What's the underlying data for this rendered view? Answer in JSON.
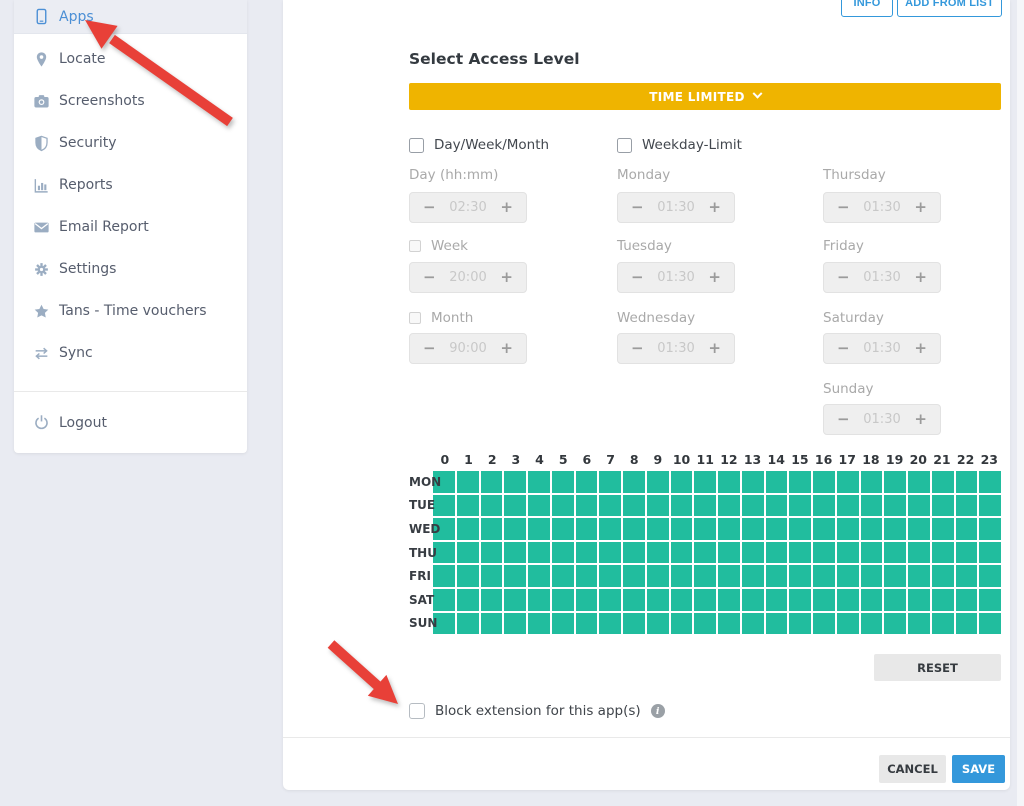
{
  "sidebar": {
    "items": [
      {
        "label": "Apps",
        "icon": "mobile-icon",
        "active": true
      },
      {
        "label": "Locate",
        "icon": "location-pin-icon",
        "active": false
      },
      {
        "label": "Screenshots",
        "icon": "camera-icon",
        "active": false
      },
      {
        "label": "Security",
        "icon": "shield-icon",
        "active": false
      },
      {
        "label": "Reports",
        "icon": "bar-chart-icon",
        "active": false
      },
      {
        "label": "Email Report",
        "icon": "envelope-icon",
        "active": false
      },
      {
        "label": "Settings",
        "icon": "gear-icon",
        "active": false
      },
      {
        "label": "Tans - Time vouchers",
        "icon": "star-icon",
        "active": false
      },
      {
        "label": "Sync",
        "icon": "sync-arrows-icon",
        "active": false
      }
    ],
    "logout_label": "Logout"
  },
  "toolbar": {
    "info_label": "INFO",
    "add_from_list_label": "ADD FROM LIST"
  },
  "access": {
    "title": "Select Access Level",
    "mode_label": "TIME LIMITED"
  },
  "limits": {
    "day_week_month": {
      "checkbox_label": "Day/Week/Month",
      "checked": false,
      "day_label": "Day (hh:mm)",
      "day_value": "02:30",
      "week_label": "Week",
      "week_checked": false,
      "week_value": "20:00",
      "month_label": "Month",
      "month_checked": false,
      "month_value": "90:00"
    },
    "weekday": {
      "checkbox_label": "Weekday-Limit",
      "checked": false,
      "monday_label": "Monday",
      "monday_value": "01:30",
      "tuesday_label": "Tuesday",
      "tuesday_value": "01:30",
      "wednesday_label": "Wednesday",
      "wednesday_value": "01:30",
      "thursday_label": "Thursday",
      "thursday_value": "01:30",
      "friday_label": "Friday",
      "friday_value": "01:30",
      "saturday_label": "Saturday",
      "saturday_value": "01:30",
      "sunday_label": "Sunday",
      "sunday_value": "01:30"
    }
  },
  "stepper": {
    "minus": "−",
    "plus": "+"
  },
  "schedule": {
    "hours": [
      "0",
      "1",
      "2",
      "3",
      "4",
      "5",
      "6",
      "7",
      "8",
      "9",
      "10",
      "11",
      "12",
      "13",
      "14",
      "15",
      "16",
      "17",
      "18",
      "19",
      "20",
      "21",
      "22",
      "23"
    ],
    "days": [
      "MON",
      "TUE",
      "WED",
      "THU",
      "FRI",
      "SAT",
      "SUN"
    ],
    "all_cells_selected": true,
    "cell_color": "#21bd9e",
    "reset_label": "RESET"
  },
  "block_extension": {
    "label": "Block extension for this app(s)",
    "checked": false
  },
  "footer": {
    "cancel_label": "CANCEL",
    "save_label": "SAVE"
  },
  "colors": {
    "accent_yellow": "#efb400",
    "accent_blue": "#3498db",
    "grid_teal": "#21bd9e",
    "arrow_red": "#e84038",
    "page_bg": "#e9ebf2"
  }
}
